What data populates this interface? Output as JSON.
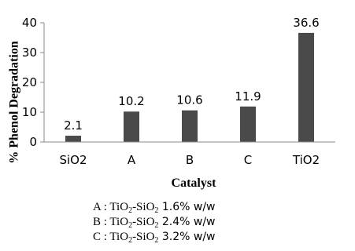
{
  "chart_data": {
    "type": "bar",
    "categories": [
      "SiO2",
      "A",
      "B",
      "C",
      "TiO2"
    ],
    "values": [
      2.1,
      10.2,
      10.6,
      11.9,
      36.6
    ],
    "data_labels": [
      "2.1",
      "10.2",
      "10.6",
      "11.9",
      "36.6"
    ],
    "title": "",
    "xlabel": "Catalyst",
    "ylabel": "% Phenol Degradation",
    "ylim": [
      0,
      40
    ],
    "yticks": [
      "0",
      "10",
      "20",
      "30",
      "40"
    ],
    "grid": false,
    "bar_color": "#4a4a4a",
    "axis_color": "#888888"
  },
  "legend": [
    {
      "key": "A",
      "sep": " : ",
      "m1": "TiO",
      "s1": "2",
      "m2": "-SiO",
      "s2": "2",
      "pct": " 1.6% w/w"
    },
    {
      "key": "B",
      "sep": " : ",
      "m1": "TiO",
      "s1": "2",
      "m2": "-SiO",
      "s2": "2",
      "pct": " 2.4% w/w"
    },
    {
      "key": "C",
      "sep": " : ",
      "m1": "TiO",
      "s1": "2",
      "m2": "-SiO",
      "s2": "2",
      "pct": " 3.2% w/w"
    }
  ]
}
